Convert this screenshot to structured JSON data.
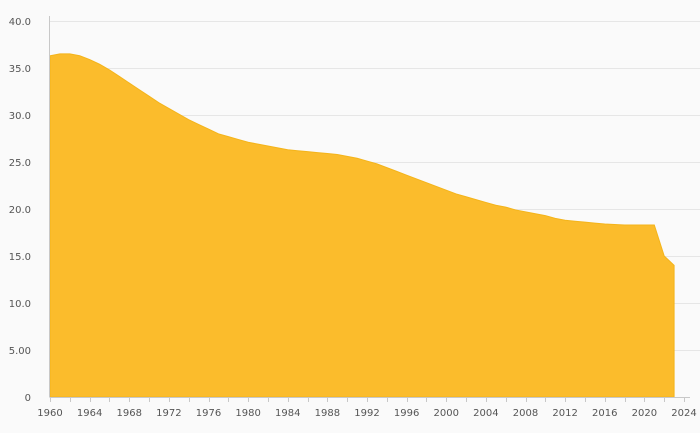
{
  "chart_data": {
    "type": "area",
    "title": "",
    "xlabel": "",
    "ylabel": "",
    "xlim": [
      1960,
      2024
    ],
    "ylim": [
      0,
      40
    ],
    "grid": true,
    "legend": "none",
    "y_ticks": [
      0,
      5,
      10,
      15,
      20,
      25,
      30,
      35,
      40
    ],
    "y_tick_labels": [
      "0",
      "5.00",
      "10.0",
      "15.0",
      "20.0",
      "25.0",
      "30.0",
      "35.0",
      "40.0"
    ],
    "x_ticks": [
      1960,
      1964,
      1968,
      1972,
      1976,
      1980,
      1984,
      1988,
      1992,
      1996,
      2000,
      2004,
      2008,
      2012,
      2016,
      2020,
      2024
    ],
    "x_tick_labels": [
      "1960",
      "1964",
      "1968",
      "1972",
      "1976",
      "1980",
      "1984",
      "1988",
      "1992",
      "1996",
      "2000",
      "2004",
      "2008",
      "2012",
      "2016",
      "2020",
      "2024"
    ],
    "color": "#fbbc2c",
    "series": [
      {
        "x": [
          1960,
          1961,
          1962,
          1963,
          1964,
          1965,
          1966,
          1967,
          1968,
          1969,
          1970,
          1971,
          1972,
          1973,
          1974,
          1975,
          1976,
          1977,
          1978,
          1979,
          1980,
          1981,
          1982,
          1983,
          1984,
          1985,
          1986,
          1987,
          1988,
          1989,
          1990,
          1991,
          1992,
          1993,
          1994,
          1995,
          1996,
          1997,
          1998,
          1999,
          2000,
          2001,
          2002,
          2003,
          2004,
          2005,
          2006,
          2007,
          2008,
          2009,
          2010,
          2011,
          2012,
          2013,
          2014,
          2015,
          2016,
          2017,
          2018,
          2019,
          2020,
          2021,
          2022,
          2023
        ],
        "values": [
          36.3,
          36.5,
          36.5,
          36.3,
          35.9,
          35.4,
          34.8,
          34.1,
          33.4,
          32.7,
          32.0,
          31.3,
          30.7,
          30.1,
          29.5,
          29.0,
          28.5,
          28.0,
          27.7,
          27.4,
          27.1,
          26.9,
          26.7,
          26.5,
          26.3,
          26.2,
          26.1,
          26.0,
          25.9,
          25.8,
          25.6,
          25.4,
          25.1,
          24.8,
          24.4,
          24.0,
          23.6,
          23.2,
          22.8,
          22.4,
          22.0,
          21.6,
          21.3,
          21.0,
          20.7,
          20.4,
          20.2,
          19.9,
          19.7,
          19.5,
          19.3,
          19.0,
          18.8,
          18.7,
          18.6,
          18.5,
          18.4,
          18.35,
          18.3,
          18.3,
          18.3,
          18.3,
          15.0,
          14.0
        ]
      }
    ]
  }
}
